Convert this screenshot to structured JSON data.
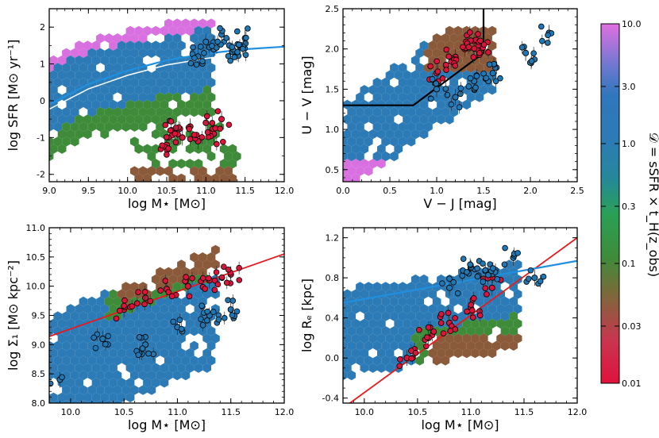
{
  "figure": {
    "colorbar": {
      "label": "𝒟 = sSFR × t_H(z_obs)",
      "ticks": [
        "10.0",
        "3.0",
        "1.0",
        "0.3",
        "0.1",
        "0.03",
        "0.01"
      ],
      "range": [
        0.01,
        10.0
      ],
      "scale": "log"
    }
  },
  "chart_data": [
    {
      "id": "panel-a",
      "type": "scatter",
      "xlabel": "log M⋆ [M⊙]",
      "ylabel": "log SFR [M⊙ yr⁻¹]",
      "xlim": [
        9.0,
        12.0
      ],
      "ylim": [
        -2.2,
        2.5
      ],
      "xticks": [
        "9.0",
        "9.5",
        "10.0",
        "10.5",
        "11.0",
        "11.5",
        "12.0"
      ],
      "yticks": [
        "-2",
        "-1",
        "0",
        "1",
        "2"
      ],
      "series": [
        {
          "name": "star-forming main sequence (blue curve)",
          "color": "#1f8fe0",
          "x": [
            9.0,
            9.5,
            10.0,
            10.5,
            11.0,
            11.5,
            12.0
          ],
          "y": [
            -0.1,
            0.45,
            0.82,
            1.1,
            1.28,
            1.4,
            1.47
          ]
        },
        {
          "name": "hexbin background (parent sample)",
          "color": "#2c73b8"
        },
        {
          "name": "quiescent galaxies",
          "color": "#dc143c",
          "x": [
            10.5,
            10.6,
            10.7,
            10.8,
            10.9,
            11.0,
            11.1,
            11.2
          ],
          "y": [
            -1.2,
            -0.8,
            -1.0,
            -0.7,
            -1.1,
            -0.6,
            -0.9,
            -0.5
          ]
        },
        {
          "name": "star-forming galaxies",
          "color": "#1f77b4",
          "x": [
            10.9,
            11.0,
            11.1,
            11.2,
            11.3,
            11.4,
            11.5
          ],
          "y": [
            1.2,
            1.6,
            1.4,
            1.8,
            1.5,
            1.3,
            1.7
          ]
        }
      ]
    },
    {
      "id": "panel-b",
      "type": "scatter",
      "xlabel": "V − J [mag]",
      "ylabel": "U − V [mag]",
      "xlim": [
        0.0,
        2.5
      ],
      "ylim": [
        0.35,
        2.5
      ],
      "xticks": [
        "0.0",
        "0.5",
        "1.0",
        "1.5",
        "2.0",
        "2.5"
      ],
      "yticks": [
        "0.5",
        "1.0",
        "1.5",
        "2.0",
        "2.5"
      ],
      "series": [
        {
          "name": "UVJ quiescent selection boundary",
          "color": "#000000",
          "x": [
            0.0,
            0.75,
            1.5,
            1.5
          ],
          "y": [
            1.3,
            1.3,
            1.95,
            2.5
          ]
        },
        {
          "name": "hexbin background (parent sample)",
          "color": "#2c73b8"
        },
        {
          "name": "quiescent galaxies",
          "color": "#dc143c",
          "x": [
            1.0,
            1.1,
            1.2,
            1.3,
            1.4,
            1.5
          ],
          "y": [
            1.7,
            1.8,
            1.9,
            2.0,
            2.1,
            2.05
          ]
        },
        {
          "name": "star-forming galaxies",
          "color": "#1f77b4",
          "x": [
            1.0,
            1.2,
            1.4,
            1.6,
            1.95,
            2.2
          ],
          "y": [
            1.5,
            1.4,
            1.6,
            1.7,
            1.95,
            2.2
          ]
        }
      ]
    },
    {
      "id": "panel-c",
      "type": "scatter",
      "xlabel": "log M⋆ [M⊙]",
      "ylabel": "log Σ₁ [M⊙ kpc⁻²]",
      "xlim": [
        9.8,
        12.0
      ],
      "ylim": [
        8.0,
        11.0
      ],
      "xticks": [
        "10.0",
        "10.5",
        "11.0",
        "11.5",
        "12.0"
      ],
      "yticks": [
        "8.0",
        "8.5",
        "9.0",
        "9.5",
        "10.0",
        "10.5",
        "11.0"
      ],
      "series": [
        {
          "name": "quiescent Σ₁ relation (red line)",
          "color": "#e8191c",
          "x": [
            9.8,
            12.0
          ],
          "y": [
            9.14,
            10.55
          ]
        },
        {
          "name": "hexbin background (parent sample)",
          "color": "#2c73b8"
        },
        {
          "name": "quiescent galaxies",
          "color": "#dc143c",
          "x": [
            10.5,
            10.7,
            10.9,
            11.1,
            11.3,
            11.5
          ],
          "y": [
            9.6,
            9.8,
            9.95,
            10.0,
            10.1,
            10.2
          ]
        },
        {
          "name": "star-forming galaxies",
          "color": "#1f77b4",
          "x": [
            9.9,
            10.3,
            10.7,
            11.0,
            11.3,
            11.5
          ],
          "y": [
            8.4,
            9.1,
            9.0,
            9.3,
            9.5,
            9.6
          ]
        }
      ]
    },
    {
      "id": "panel-d",
      "type": "scatter",
      "xlabel": "log M⋆ [M⊙]",
      "ylabel": "log Rₑ [kpc]",
      "xlim": [
        9.8,
        12.0
      ],
      "ylim": [
        -0.45,
        1.3
      ],
      "xticks": [
        "10.0",
        "10.5",
        "11.0",
        "11.5",
        "12.0"
      ],
      "yticks": [
        "-0.4",
        "0.0",
        "0.4",
        "0.8",
        "1.2"
      ],
      "series": [
        {
          "name": "quiescent size-mass relation (red line)",
          "color": "#e8191c",
          "x": [
            9.8,
            12.0
          ],
          "y": [
            -0.5,
            1.2
          ]
        },
        {
          "name": "star-forming size-mass relation (blue line)",
          "color": "#1f8fe0",
          "x": [
            9.8,
            12.0
          ],
          "y": [
            0.55,
            0.97
          ]
        },
        {
          "name": "hexbin background (parent sample)",
          "color": "#2c73b8"
        },
        {
          "name": "quiescent galaxies",
          "color": "#dc143c",
          "x": [
            10.4,
            10.6,
            10.8,
            11.0,
            11.2
          ],
          "y": [
            0.0,
            0.2,
            0.35,
            0.5,
            0.7
          ]
        },
        {
          "name": "star-forming galaxies",
          "color": "#1f77b4",
          "x": [
            10.8,
            11.0,
            11.2,
            11.4,
            11.6
          ],
          "y": [
            0.7,
            0.9,
            0.85,
            1.0,
            0.8
          ]
        }
      ]
    }
  ]
}
